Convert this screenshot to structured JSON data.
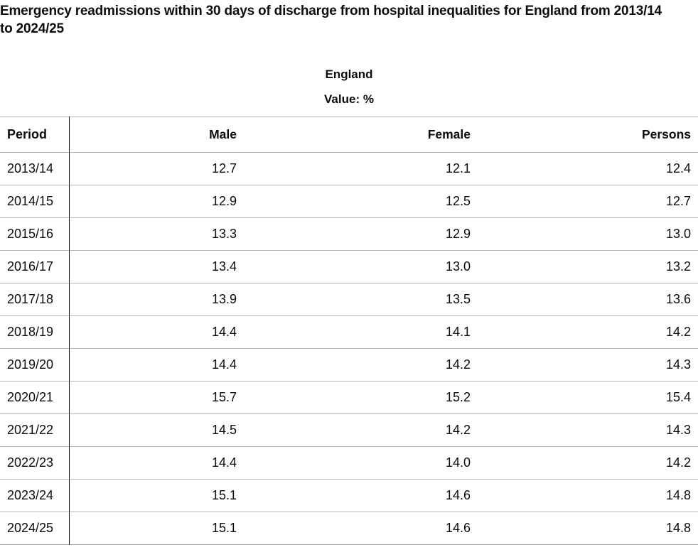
{
  "chart_data": {
    "type": "table",
    "title": "Emergency readmissions within 30 days of discharge from hospital inequalities for England from 2013/14 to 2024/25",
    "group_label": "England",
    "value_label": "Value: %",
    "columns": [
      "Period",
      "Male",
      "Female",
      "Persons"
    ],
    "rows": [
      [
        "2013/14",
        "12.7",
        "12.1",
        "12.4"
      ],
      [
        "2014/15",
        "12.9",
        "12.5",
        "12.7"
      ],
      [
        "2015/16",
        "13.3",
        "12.9",
        "13.0"
      ],
      [
        "2016/17",
        "13.4",
        "13.0",
        "13.2"
      ],
      [
        "2017/18",
        "13.9",
        "13.5",
        "13.6"
      ],
      [
        "2018/19",
        "14.4",
        "14.1",
        "14.2"
      ],
      [
        "2019/20",
        "14.4",
        "14.2",
        "14.3"
      ],
      [
        "2020/21",
        "15.7",
        "15.2",
        "15.4"
      ],
      [
        "2021/22",
        "14.5",
        "14.2",
        "14.3"
      ],
      [
        "2022/23",
        "14.4",
        "14.0",
        "14.2"
      ],
      [
        "2023/24",
        "15.1",
        "14.6",
        "14.8"
      ],
      [
        "2024/25",
        "15.1",
        "14.6",
        "14.8"
      ]
    ]
  }
}
